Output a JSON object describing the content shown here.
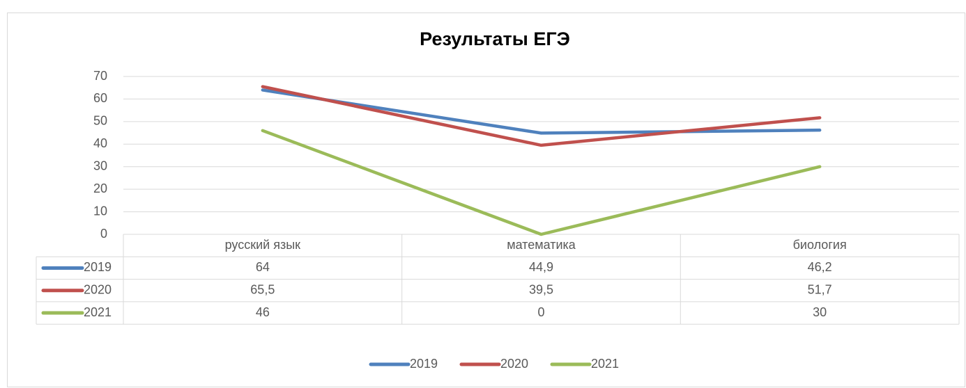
{
  "chart_data": {
    "type": "line",
    "title": "Результаты ЕГЭ",
    "categories": [
      "русский язык",
      "математика",
      "биология"
    ],
    "series": [
      {
        "name": "2019",
        "color": "#4f81bd",
        "values": [
          64,
          44.9,
          46.2
        ],
        "value_labels": [
          "64",
          "44,9",
          "46,2"
        ]
      },
      {
        "name": "2020",
        "color": "#c0504d",
        "values": [
          65.5,
          39.5,
          51.7
        ],
        "value_labels": [
          "65,5",
          "39,5",
          "51,7"
        ]
      },
      {
        "name": "2021",
        "color": "#9bbb59",
        "values": [
          46,
          0,
          30
        ],
        "value_labels": [
          "46",
          "0",
          "30"
        ]
      }
    ],
    "ylim": [
      0,
      70
    ],
    "yticks": [
      0,
      10,
      20,
      30,
      40,
      50,
      60,
      70
    ],
    "grid": true,
    "legend": "bottom",
    "data_table": true
  }
}
